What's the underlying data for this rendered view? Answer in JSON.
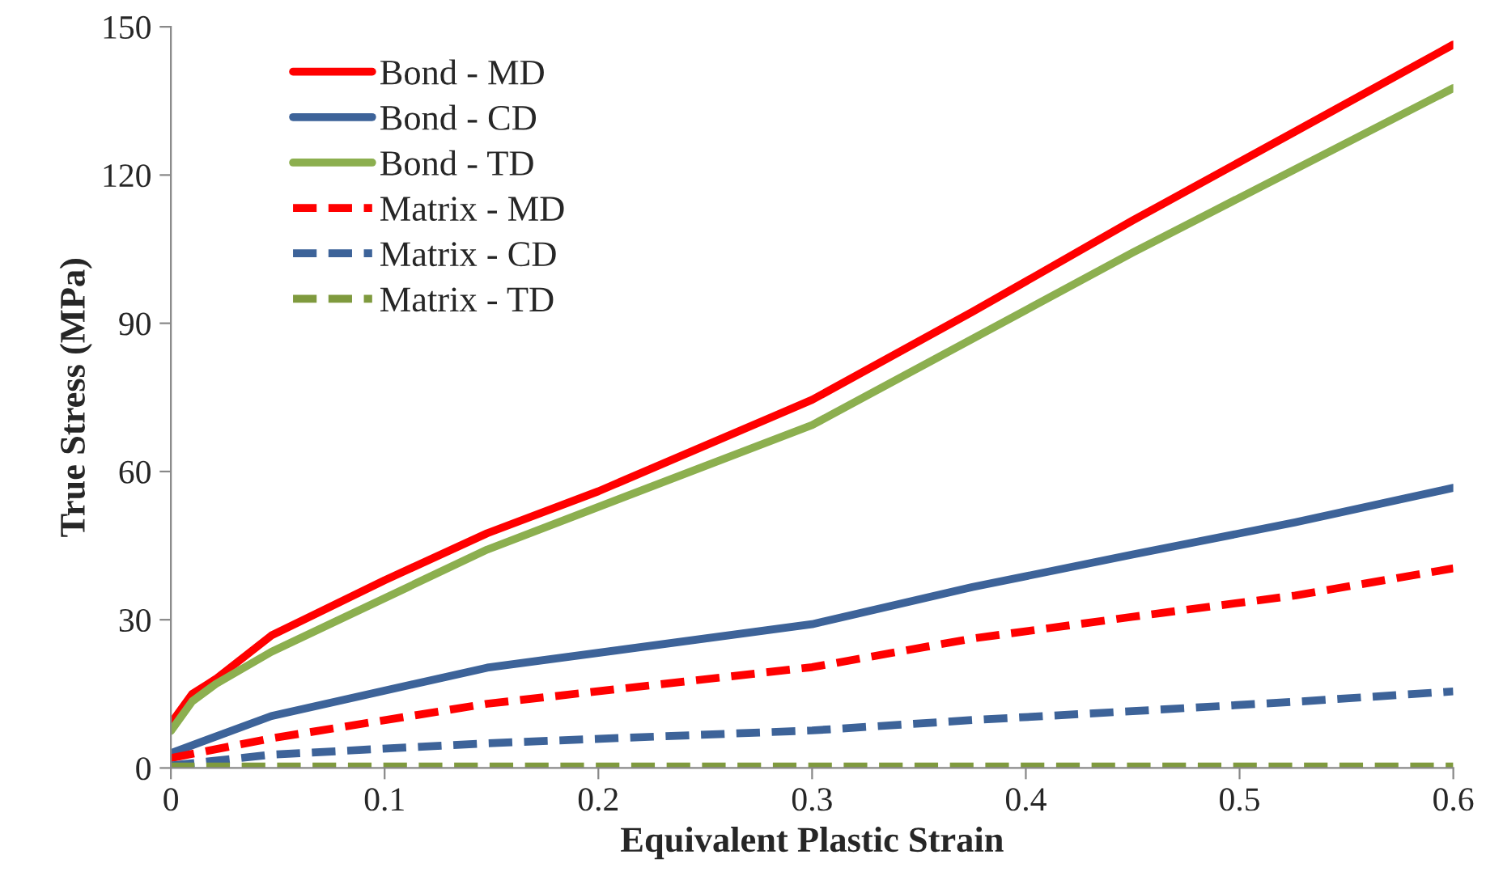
{
  "chart_data": {
    "type": "line",
    "xlabel": "Equivalent Plastic Strain",
    "ylabel": "True Stress (MPa)",
    "xlim": [
      0,
      0.6
    ],
    "xticks": [
      0,
      0.1,
      0.2,
      0.3,
      0.4,
      0.5,
      0.6
    ],
    "ylim": [
      0,
      150
    ],
    "yticks": [
      0,
      30,
      60,
      90,
      120,
      150
    ],
    "grid": false,
    "legend": "top left",
    "series": [
      {
        "name": "Bond - MD",
        "color": "#ff0000",
        "line_style": "solid",
        "x": [
          0,
          0.01,
          0.021,
          0.047,
          0.1,
          0.148,
          0.2,
          0.3,
          0.375,
          0.45,
          0.526,
          0.6
        ],
        "values": [
          9,
          15,
          18,
          26.8,
          38,
          47.5,
          56,
          74.5,
          92.3,
          110.8,
          128.8,
          146.4
        ]
      },
      {
        "name": "Bond - CD",
        "color": "#3d6399",
        "line_style": "solid",
        "x": [
          0,
          0.047,
          0.148,
          0.3,
          0.375,
          0.45,
          0.526,
          0.6
        ],
        "values": [
          3,
          10.5,
          20.3,
          29.1,
          36.6,
          43.2,
          49.7,
          56.7
        ]
      },
      {
        "name": "Bond - TD",
        "color": "#8caf4f",
        "line_style": "solid",
        "x": [
          0,
          0.01,
          0.021,
          0.047,
          0.148,
          0.3,
          0.45,
          0.6
        ],
        "values": [
          7.5,
          13.5,
          17,
          23.5,
          44.2,
          69.4,
          104.3,
          137.6
        ]
      },
      {
        "name": "Matrix - MD",
        "color": "#ff0000",
        "line_style": "dashed",
        "x": [
          0,
          0.047,
          0.148,
          0.3,
          0.375,
          0.45,
          0.526,
          0.6
        ],
        "values": [
          2,
          6,
          13,
          20.4,
          26.2,
          30.6,
          34.9,
          40.4
        ]
      },
      {
        "name": "Matrix - CD",
        "color": "#3d6399",
        "line_style": "dashed",
        "x": [
          0,
          0.047,
          0.148,
          0.3,
          0.375,
          0.45,
          0.526,
          0.6
        ],
        "values": [
          0.5,
          2.7,
          5,
          7.6,
          9.7,
          11.5,
          13.4,
          15.5
        ]
      },
      {
        "name": "Matrix - TD",
        "color": "#7f9a3e",
        "line_style": "dashed",
        "x": [
          0,
          0.6
        ],
        "values": [
          0.3,
          0.3
        ]
      }
    ]
  }
}
